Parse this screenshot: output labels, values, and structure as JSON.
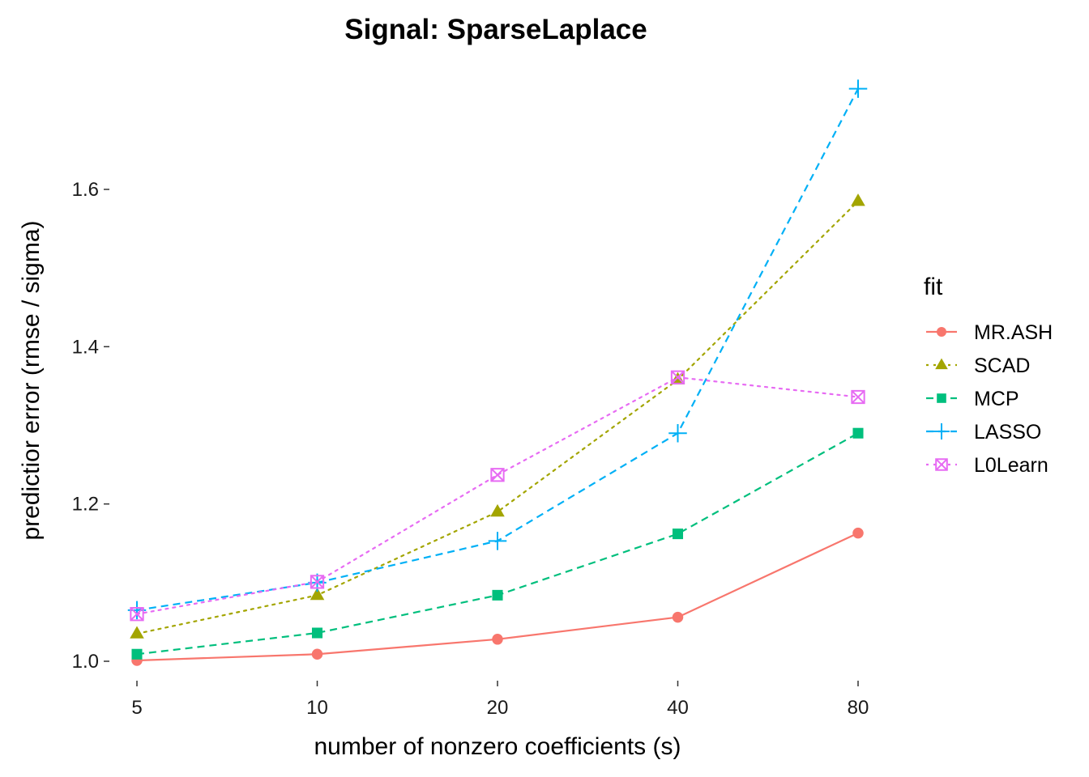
{
  "chart_data": {
    "type": "line",
    "title": "Signal: SparseLaplace",
    "xlabel": "number of nonzero coefficients (s)",
    "ylabel": "predictior error (rmse / sigma)",
    "x": [
      5,
      10,
      20,
      40,
      80
    ],
    "x_scale": "log2",
    "xticks": [
      "5",
      "10",
      "20",
      "40",
      "80"
    ],
    "yticks": [
      "1.0",
      "1.2",
      "1.4",
      "1.6"
    ],
    "ylim": [
      0.965,
      1.74
    ],
    "grid": false,
    "legend": {
      "title": "fit",
      "position": "right"
    },
    "series": [
      {
        "name": "MR.ASH",
        "color": "#F8766D",
        "marker": "circle",
        "line": "solid",
        "values": [
          1.001,
          1.009,
          1.028,
          1.056,
          1.163
        ]
      },
      {
        "name": "SCAD",
        "color": "#A3A500",
        "marker": "triangle",
        "line": "dotted",
        "values": [
          1.035,
          1.084,
          1.19,
          1.358,
          1.585
        ]
      },
      {
        "name": "MCP",
        "color": "#00BF7D",
        "marker": "square",
        "line": "dashed",
        "values": [
          1.009,
          1.036,
          1.084,
          1.162,
          1.29
        ]
      },
      {
        "name": "LASSO",
        "color": "#00B0F6",
        "marker": "plus",
        "line": "dashed",
        "values": [
          1.065,
          1.1,
          1.153,
          1.29,
          1.728
        ]
      },
      {
        "name": "L0Learn",
        "color": "#E76BF3",
        "marker": "boxx",
        "line": "dotted",
        "values": [
          1.06,
          1.101,
          1.237,
          1.361,
          1.336
        ]
      }
    ]
  }
}
